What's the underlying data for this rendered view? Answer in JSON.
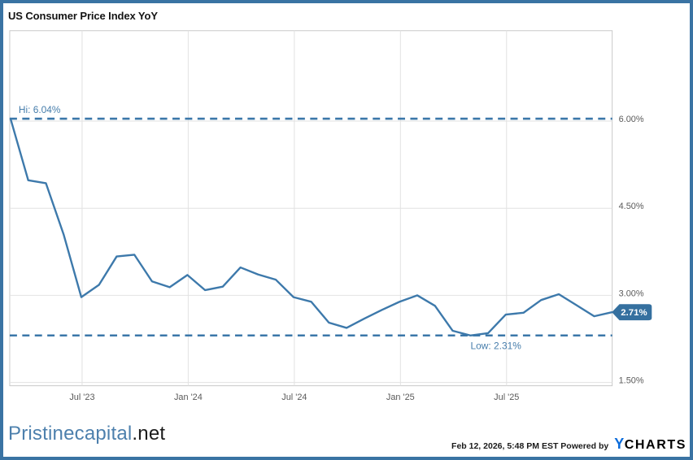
{
  "header": {
    "title": "US Consumer Price Index YoY"
  },
  "chart_data": {
    "type": "line",
    "title": "US Consumer Price Index YoY",
    "x_months": [
      "2023-02",
      "2023-03",
      "2023-04",
      "2023-05",
      "2023-06",
      "2023-07",
      "2023-08",
      "2023-09",
      "2023-10",
      "2023-11",
      "2023-12",
      "2024-01",
      "2024-02",
      "2024-03",
      "2024-04",
      "2024-05",
      "2024-06",
      "2024-07",
      "2024-08",
      "2024-09",
      "2024-10",
      "2024-11",
      "2024-12",
      "2025-01",
      "2025-02",
      "2025-03",
      "2025-04",
      "2025-05",
      "2025-06",
      "2025-07",
      "2025-08",
      "2025-09",
      "2025-10",
      "2025-11",
      "2025-12"
    ],
    "series": [
      {
        "name": "US Consumer Price Index YoY",
        "values": [
          6.04,
          4.98,
          4.93,
          4.05,
          2.97,
          3.18,
          3.67,
          3.7,
          3.24,
          3.14,
          3.35,
          3.09,
          3.15,
          3.48,
          3.36,
          3.27,
          2.97,
          2.89,
          2.53,
          2.44,
          2.6,
          2.75,
          2.89,
          3.0,
          2.82,
          2.39,
          2.31,
          2.35,
          2.67,
          2.7,
          2.92,
          3.02,
          2.83,
          2.64,
          2.71
        ]
      }
    ],
    "x_ticks": [
      {
        "label": "Jul '23",
        "month": "2023-07"
      },
      {
        "label": "Jan '24",
        "month": "2024-01"
      },
      {
        "label": "Jul '24",
        "month": "2024-07"
      },
      {
        "label": "Jan '25",
        "month": "2025-01"
      },
      {
        "label": "Jul '25",
        "month": "2025-07"
      }
    ],
    "y_ticks": [
      {
        "label": "6.00%",
        "value": 6.0
      },
      {
        "label": "4.50%",
        "value": 4.5
      },
      {
        "label": "3.00%",
        "value": 3.0
      },
      {
        "label": "1.50%",
        "value": 1.5
      }
    ],
    "ylim": [
      1.44,
      7.56
    ],
    "grid": true,
    "legend": "none",
    "hi": {
      "label": "Hi: 6.04%",
      "value": 6.04
    },
    "low": {
      "label": "Low: 2.31%",
      "value": 2.31
    },
    "last": {
      "label": "2.71%",
      "value": 2.71
    },
    "colors": {
      "line": "#3d79ab",
      "dash": "#3b77a9",
      "badge": "#35709f",
      "grid": "#e2e2e2",
      "plot_border": "#c9c9c9",
      "axis_text": "#5a5a5a",
      "hilo_text": "#467dab",
      "frame_border": "#3a73a3"
    }
  },
  "footer": {
    "brand_blue": "Pristinecapital",
    "brand_dark": ".net",
    "timestamp": "Feb 12, 2026, 5:48 PM EST",
    "powered_by": "Powered by",
    "ycharts_y": "Y",
    "ycharts_charts": "CHARTS"
  }
}
